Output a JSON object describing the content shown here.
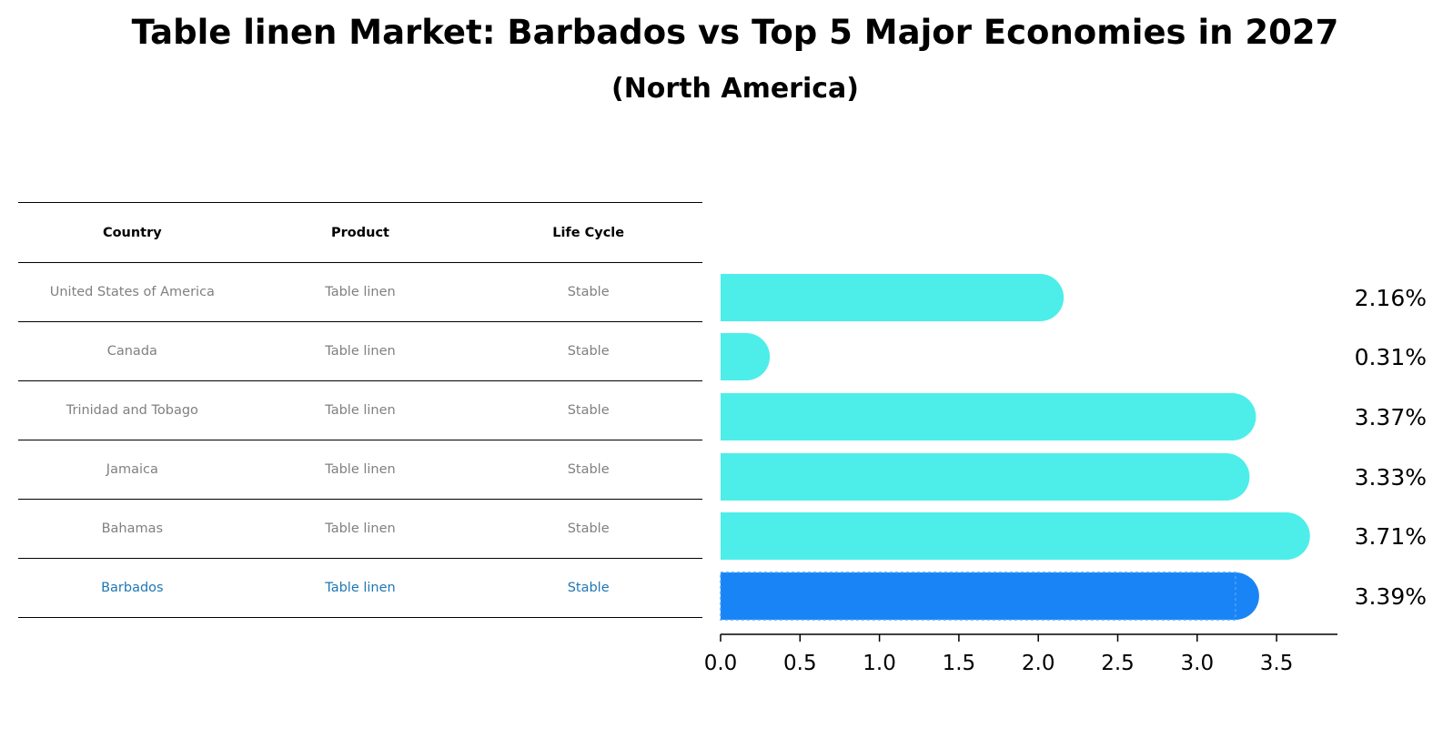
{
  "title": "Table linen Market: Barbados vs Top 5 Major Economies in 2027",
  "subtitle": "(North America)",
  "table": {
    "headers": [
      "Country",
      "Product",
      "Life Cycle"
    ],
    "rows": [
      {
        "country": "United States of America",
        "product": "Table linen",
        "life_cycle": "Stable"
      },
      {
        "country": "Canada",
        "product": "Table linen",
        "life_cycle": "Stable"
      },
      {
        "country": "Trinidad and Tobago",
        "product": "Table linen",
        "life_cycle": "Stable"
      },
      {
        "country": "Jamaica",
        "product": "Table linen",
        "life_cycle": "Stable"
      },
      {
        "country": "Bahamas",
        "product": "Table linen",
        "life_cycle": "Stable"
      },
      {
        "country": "Barbados",
        "product": "Table linen",
        "life_cycle": "Stable"
      }
    ]
  },
  "colors": {
    "bar": "#4ded ea",
    "bar_main": "#4deeea",
    "highlight": "#1984f5",
    "highlight_text": "#1f77b4",
    "muted_text": "#808080"
  },
  "chart_data": {
    "type": "bar",
    "orientation": "horizontal",
    "categories": [
      "United States of America",
      "Canada",
      "Trinidad and Tobago",
      "Jamaica",
      "Bahamas",
      "Barbados"
    ],
    "values": [
      2.16,
      0.31,
      3.37,
      3.33,
      3.71,
      3.39
    ],
    "value_labels": [
      "2.16%",
      "0.31%",
      "3.37%",
      "3.33%",
      "3.71%",
      "3.39%"
    ],
    "highlight": "Barbados",
    "xlim": [
      0,
      3.9
    ],
    "xticks": [
      0.0,
      0.5,
      1.0,
      1.5,
      2.0,
      2.5,
      3.0,
      3.5
    ],
    "xtick_labels": [
      "0.0",
      "0.5",
      "1.0",
      "1.5",
      "2.0",
      "2.5",
      "3.0",
      "3.5"
    ],
    "title": "Table linen Market: Barbados vs Top 5 Major Economies in 2027",
    "xlabel": "",
    "ylabel": ""
  }
}
